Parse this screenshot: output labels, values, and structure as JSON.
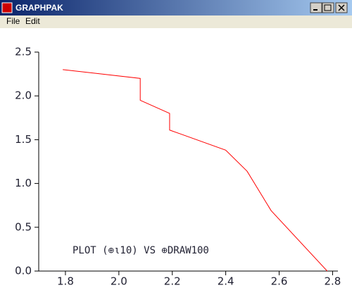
{
  "window": {
    "title": "GRAPHPAK",
    "menu": [
      "File",
      "Edit"
    ]
  },
  "chart_data": {
    "type": "line",
    "annotation": "PLOT (⊕ι10) VS ⊕DRAW100",
    "x": [
      1.79,
      2.08,
      2.08,
      2.19,
      2.19,
      2.4,
      2.48,
      2.57,
      2.78
    ],
    "series": [
      {
        "color": "#ff0000",
        "values": [
          2.3,
          2.2,
          1.95,
          1.8,
          1.61,
          1.38,
          1.14,
          0.69,
          0.0
        ]
      }
    ],
    "xlim": [
      1.7,
      2.82
    ],
    "ylim": [
      0,
      2.5
    ],
    "xticks": [
      1.8,
      {
        "value": 2.0,
        "label": "2.0"
      },
      2.2,
      2.4,
      2.6,
      2.8
    ],
    "yticks": [
      {
        "value": 0,
        "label": "0.0"
      },
      0.5,
      {
        "value": 1.0,
        "label": "1.0"
      },
      1.5,
      {
        "value": 2.0,
        "label": "2.0"
      },
      2.5
    ]
  }
}
